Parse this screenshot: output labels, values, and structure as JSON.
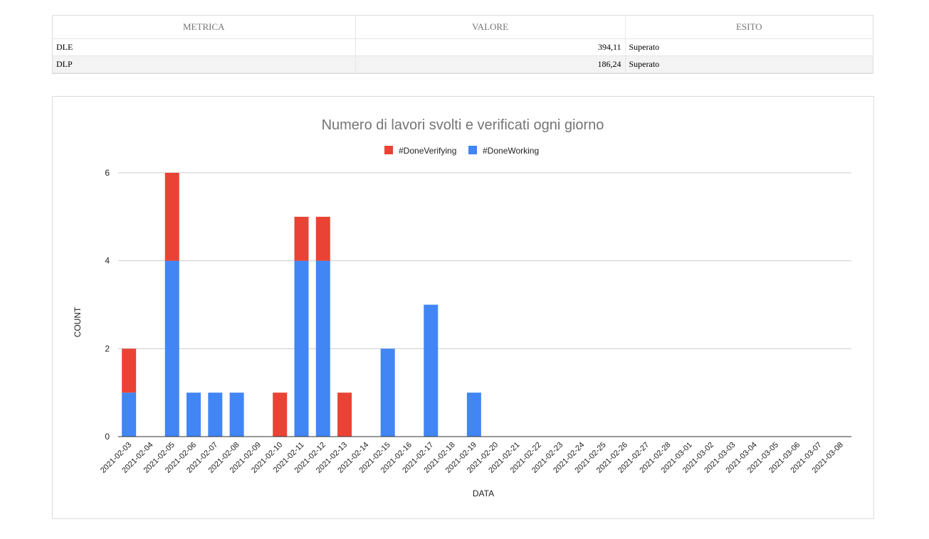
{
  "table": {
    "headers": [
      "METRICA",
      "VALORE",
      "ESITO"
    ],
    "rows": [
      [
        "DLE",
        "394,11",
        "Superato"
      ],
      [
        "DLP",
        "186,24",
        "Superato"
      ]
    ]
  },
  "colors": {
    "verifying": "#ea4335",
    "working": "#4285f4"
  },
  "chart_data": {
    "type": "bar",
    "stacked": true,
    "title": "Numero di lavori svolti e verificati ogni giorno",
    "xlabel": "DATA",
    "ylabel": "COUNT",
    "ylim": [
      0,
      6
    ],
    "yticks": [
      0,
      2,
      4,
      6
    ],
    "grid": true,
    "legend_position": "top",
    "categories": [
      "2021-02-03",
      "2021-02-04",
      "2021-02-05",
      "2021-02-06",
      "2021-02-07",
      "2021-02-08",
      "2021-02-09",
      "2021-02-10",
      "2021-02-11",
      "2021-02-12",
      "2021-02-13",
      "2021-02-14",
      "2021-02-15",
      "2021-02-16",
      "2021-02-17",
      "2021-02-18",
      "2021-02-19",
      "2021-02-20",
      "2021-02-21",
      "2021-02-22",
      "2021-02-23",
      "2021-02-24",
      "2021-02-25",
      "2021-02-26",
      "2021-02-27",
      "2021-02-28",
      "2021-03-01",
      "2021-03-02",
      "2021-03-03",
      "2021-03-04",
      "2021-03-05",
      "2021-03-06",
      "2021-03-07",
      "2021-03-08"
    ],
    "series": [
      {
        "name": "#DoneVerifying",
        "color": "#ea4335",
        "values": [
          1,
          0,
          2,
          0,
          0,
          0,
          0,
          1,
          1,
          1,
          1,
          0,
          0,
          0,
          0,
          0,
          0,
          0,
          0,
          0,
          0,
          0,
          0,
          0,
          0,
          0,
          0,
          0,
          0,
          0,
          0,
          0,
          0,
          0
        ]
      },
      {
        "name": "#DoneWorking",
        "color": "#4285f4",
        "values": [
          1,
          0,
          4,
          1,
          1,
          1,
          0,
          0,
          4,
          4,
          0,
          0,
          2,
          0,
          3,
          0,
          1,
          0,
          0,
          0,
          0,
          0,
          0,
          0,
          0,
          0,
          0,
          0,
          0,
          0,
          0,
          0,
          0,
          0
        ]
      }
    ]
  }
}
